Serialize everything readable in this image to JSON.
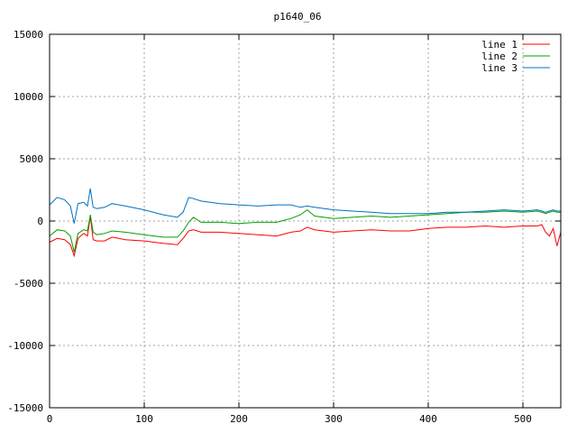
{
  "chart_data": {
    "type": "line",
    "title": "p1640_06",
    "xlabel": "",
    "ylabel": "",
    "xlim": [
      0,
      540
    ],
    "ylim": [
      -15000,
      15000
    ],
    "x_ticks": [
      0,
      100,
      200,
      300,
      400,
      500
    ],
    "y_ticks": [
      -15000,
      -10000,
      -5000,
      0,
      5000,
      10000,
      15000
    ],
    "grid": true,
    "legend_position": "top-right",
    "series": [
      {
        "name": "line 1",
        "color": "#ff0000",
        "x": [
          0,
          8,
          16,
          22,
          26,
          30,
          36,
          40,
          43,
          46,
          50,
          58,
          66,
          80,
          100,
          120,
          135,
          141,
          147,
          152,
          160,
          180,
          200,
          220,
          240,
          255,
          265,
          272,
          280,
          300,
          320,
          340,
          360,
          380,
          400,
          420,
          440,
          460,
          480,
          500,
          515,
          520,
          524,
          528,
          532,
          536,
          540
        ],
        "values": [
          -1700,
          -1400,
          -1500,
          -1900,
          -2800,
          -1400,
          -1000,
          -1200,
          400,
          -1500,
          -1600,
          -1600,
          -1300,
          -1500,
          -1600,
          -1800,
          -1900,
          -1400,
          -800,
          -700,
          -900,
          -900,
          -1000,
          -1100,
          -1200,
          -900,
          -800,
          -500,
          -700,
          -900,
          -800,
          -700,
          -800,
          -800,
          -600,
          -500,
          -500,
          -400,
          -500,
          -400,
          -400,
          -300,
          -900,
          -1200,
          -600,
          -2000,
          -900
        ]
      },
      {
        "name": "line 2",
        "color": "#00a000",
        "x": [
          0,
          8,
          16,
          22,
          26,
          30,
          36,
          40,
          43,
          46,
          50,
          58,
          66,
          80,
          100,
          120,
          135,
          141,
          147,
          152,
          160,
          180,
          200,
          220,
          240,
          255,
          265,
          272,
          280,
          300,
          320,
          340,
          360,
          380,
          400,
          420,
          440,
          460,
          480,
          500,
          515,
          520,
          524,
          528,
          532,
          536,
          540
        ],
        "values": [
          -1200,
          -700,
          -800,
          -1200,
          -2500,
          -1000,
          -700,
          -800,
          500,
          -900,
          -1100,
          -1000,
          -800,
          -900,
          -1100,
          -1300,
          -1300,
          -800,
          -100,
          300,
          -100,
          -100,
          -200,
          -100,
          -100,
          200,
          500,
          900,
          400,
          200,
          300,
          400,
          300,
          400,
          500,
          600,
          700,
          700,
          800,
          700,
          800,
          700,
          600,
          700,
          800,
          700,
          700
        ]
      },
      {
        "name": "line 3",
        "color": "#0070c0",
        "x": [
          0,
          8,
          16,
          22,
          26,
          30,
          36,
          40,
          43,
          46,
          50,
          58,
          66,
          80,
          100,
          120,
          135,
          141,
          147,
          152,
          160,
          180,
          200,
          220,
          240,
          255,
          265,
          272,
          280,
          300,
          320,
          340,
          360,
          380,
          400,
          420,
          440,
          460,
          480,
          500,
          515,
          520,
          524,
          528,
          532,
          536,
          540
        ],
        "values": [
          1300,
          1900,
          1700,
          1200,
          -200,
          1400,
          1500,
          1200,
          2600,
          1100,
          1000,
          1100,
          1400,
          1200,
          900,
          500,
          300,
          700,
          1900,
          1800,
          1600,
          1400,
          1300,
          1200,
          1300,
          1300,
          1100,
          1200,
          1100,
          900,
          800,
          700,
          600,
          600,
          600,
          700,
          700,
          800,
          900,
          800,
          900,
          800,
          700,
          800,
          900,
          800,
          800
        ]
      }
    ]
  }
}
